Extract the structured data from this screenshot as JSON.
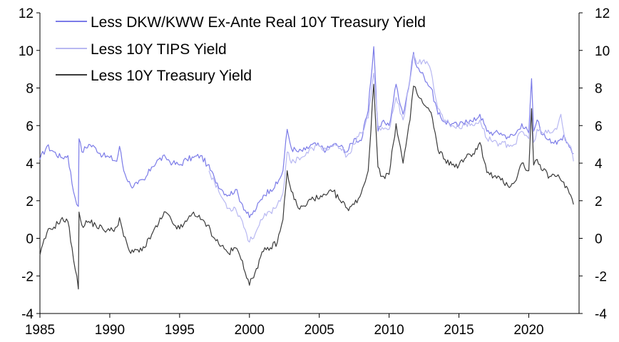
{
  "chart_data": {
    "type": "line",
    "title": "",
    "xlabel": "",
    "ylabel": "",
    "xlim": [
      1985,
      2023.6
    ],
    "ylim": [
      -4,
      12
    ],
    "x_ticks": [
      "1985",
      "1990",
      "1995",
      "2000",
      "2005",
      "2010",
      "2015",
      "2020"
    ],
    "y_ticks_left": [
      "12",
      "10",
      "8",
      "6",
      "4",
      "2",
      "0",
      "-2",
      "-4"
    ],
    "y_ticks_right": [
      "12",
      "10",
      "8",
      "6",
      "4",
      "2",
      "0",
      "-2",
      "-4"
    ],
    "grid": false,
    "legend_position": "top-left",
    "series": [
      {
        "name": "Less DKW/KWW Ex-Ante Real 10Y Treasury Yield",
        "color": "#7b7be8",
        "points": [
          [
            1985.0,
            4.2
          ],
          [
            1985.5,
            4.9
          ],
          [
            1986.0,
            4.6
          ],
          [
            1986.5,
            4.3
          ],
          [
            1987.0,
            4.4
          ],
          [
            1987.4,
            2.5
          ],
          [
            1987.75,
            1.7
          ],
          [
            1987.8,
            5.3
          ],
          [
            1988.0,
            4.6
          ],
          [
            1988.5,
            5.0
          ],
          [
            1989.0,
            4.8
          ],
          [
            1989.5,
            4.4
          ],
          [
            1990.0,
            4.3
          ],
          [
            1990.5,
            4.1
          ],
          [
            1990.7,
            4.9
          ],
          [
            1991.0,
            3.6
          ],
          [
            1991.5,
            2.8
          ],
          [
            1992.0,
            2.9
          ],
          [
            1992.5,
            3.1
          ],
          [
            1993.0,
            3.8
          ],
          [
            1993.5,
            4.2
          ],
          [
            1994.0,
            4.3
          ],
          [
            1994.5,
            4.0
          ],
          [
            1995.0,
            3.9
          ],
          [
            1995.5,
            4.2
          ],
          [
            1996.0,
            4.3
          ],
          [
            1996.5,
            4.4
          ],
          [
            1997.0,
            3.9
          ],
          [
            1997.5,
            3.2
          ],
          [
            1998.0,
            2.6
          ],
          [
            1998.5,
            2.3
          ],
          [
            1999.0,
            2.6
          ],
          [
            1999.5,
            1.8
          ],
          [
            2000.0,
            1.1
          ],
          [
            2000.5,
            1.6
          ],
          [
            2001.0,
            2.3
          ],
          [
            2001.5,
            2.6
          ],
          [
            2002.0,
            2.9
          ],
          [
            2002.4,
            3.6
          ],
          [
            2002.7,
            5.8
          ],
          [
            2003.0,
            4.8
          ],
          [
            2003.5,
            4.6
          ],
          [
            2004.0,
            4.7
          ],
          [
            2004.5,
            5.0
          ],
          [
            2005.0,
            4.9
          ],
          [
            2005.5,
            4.7
          ],
          [
            2006.0,
            5.0
          ],
          [
            2006.5,
            4.9
          ],
          [
            2007.0,
            4.6
          ],
          [
            2007.5,
            5.3
          ],
          [
            2008.0,
            5.2
          ],
          [
            2008.5,
            6.8
          ],
          [
            2008.9,
            10.2
          ],
          [
            2009.2,
            5.7
          ],
          [
            2009.5,
            6.2
          ],
          [
            2010.0,
            6.0
          ],
          [
            2010.5,
            8.2
          ],
          [
            2011.0,
            6.6
          ],
          [
            2011.5,
            8.5
          ],
          [
            2011.75,
            9.9
          ],
          [
            2012.0,
            9.1
          ],
          [
            2012.5,
            8.6
          ],
          [
            2013.0,
            8.0
          ],
          [
            2013.5,
            6.6
          ],
          [
            2014.0,
            6.2
          ],
          [
            2014.5,
            6.1
          ],
          [
            2015.0,
            6.0
          ],
          [
            2015.5,
            6.3
          ],
          [
            2016.0,
            6.2
          ],
          [
            2016.5,
            6.6
          ],
          [
            2017.0,
            5.7
          ],
          [
            2017.5,
            5.6
          ],
          [
            2018.0,
            5.6
          ],
          [
            2018.5,
            5.4
          ],
          [
            2019.0,
            5.5
          ],
          [
            2019.5,
            6.1
          ],
          [
            2020.0,
            5.6
          ],
          [
            2020.2,
            8.5
          ],
          [
            2020.35,
            5.7
          ],
          [
            2020.6,
            6.3
          ],
          [
            2021.0,
            5.5
          ],
          [
            2021.5,
            5.3
          ],
          [
            2022.0,
            5.0
          ],
          [
            2022.5,
            5.5
          ],
          [
            2023.0,
            4.8
          ],
          [
            2023.2,
            4.5
          ]
        ]
      },
      {
        "name": "Less 10Y TIPS Yield",
        "color": "#b8b8f2",
        "points": [
          [
            1997.1,
            3.6
          ],
          [
            1997.5,
            3.0
          ],
          [
            1998.0,
            2.2
          ],
          [
            1998.5,
            1.6
          ],
          [
            1999.0,
            1.6
          ],
          [
            1999.5,
            0.9
          ],
          [
            2000.0,
            -0.2
          ],
          [
            2000.5,
            0.4
          ],
          [
            2001.0,
            1.1
          ],
          [
            2001.5,
            1.4
          ],
          [
            2002.0,
            1.8
          ],
          [
            2002.4,
            2.4
          ],
          [
            2002.7,
            4.6
          ],
          [
            2003.0,
            4.0
          ],
          [
            2003.5,
            4.3
          ],
          [
            2004.0,
            4.4
          ],
          [
            2004.5,
            4.8
          ],
          [
            2005.0,
            4.9
          ],
          [
            2005.5,
            4.7
          ],
          [
            2006.0,
            4.9
          ],
          [
            2006.5,
            4.8
          ],
          [
            2007.0,
            4.4
          ],
          [
            2007.5,
            5.0
          ],
          [
            2008.0,
            5.6
          ],
          [
            2008.5,
            6.4
          ],
          [
            2008.9,
            8.8
          ],
          [
            2009.2,
            6.0
          ],
          [
            2009.5,
            5.9
          ],
          [
            2010.0,
            5.8
          ],
          [
            2010.5,
            7.5
          ],
          [
            2011.0,
            6.3
          ],
          [
            2011.5,
            8.4
          ],
          [
            2011.75,
            9.8
          ],
          [
            2012.0,
            9.3
          ],
          [
            2012.5,
            9.5
          ],
          [
            2013.0,
            8.9
          ],
          [
            2013.5,
            6.9
          ],
          [
            2014.0,
            6.3
          ],
          [
            2014.5,
            6.0
          ],
          [
            2015.0,
            5.9
          ],
          [
            2015.5,
            6.1
          ],
          [
            2016.0,
            6.0
          ],
          [
            2016.5,
            6.3
          ],
          [
            2017.0,
            5.3
          ],
          [
            2017.5,
            5.2
          ],
          [
            2018.0,
            5.0
          ],
          [
            2018.5,
            5.0
          ],
          [
            2019.0,
            5.0
          ],
          [
            2019.5,
            5.7
          ],
          [
            2020.0,
            5.3
          ],
          [
            2020.2,
            6.9
          ],
          [
            2020.35,
            5.1
          ],
          [
            2020.6,
            5.8
          ],
          [
            2021.0,
            5.6
          ],
          [
            2021.5,
            5.6
          ],
          [
            2022.0,
            5.8
          ],
          [
            2022.3,
            6.6
          ],
          [
            2022.6,
            5.2
          ],
          [
            2023.0,
            4.9
          ],
          [
            2023.2,
            4.1
          ]
        ]
      },
      {
        "name": "Less 10Y Treasury Yield",
        "color": "#3a3a3a",
        "points": [
          [
            1985.0,
            -0.9
          ],
          [
            1985.5,
            0.3
          ],
          [
            1986.0,
            0.6
          ],
          [
            1986.5,
            1.0
          ],
          [
            1987.0,
            0.9
          ],
          [
            1987.3,
            -0.5
          ],
          [
            1987.75,
            -2.7
          ],
          [
            1987.8,
            1.4
          ],
          [
            1988.0,
            0.7
          ],
          [
            1988.5,
            0.9
          ],
          [
            1989.0,
            0.7
          ],
          [
            1989.5,
            0.5
          ],
          [
            1990.0,
            0.4
          ],
          [
            1990.5,
            0.6
          ],
          [
            1990.7,
            1.1
          ],
          [
            1991.0,
            0.1
          ],
          [
            1991.5,
            -0.8
          ],
          [
            1992.0,
            -0.6
          ],
          [
            1992.5,
            -0.5
          ],
          [
            1993.0,
            0.2
          ],
          [
            1993.5,
            0.8
          ],
          [
            1994.0,
            1.4
          ],
          [
            1994.5,
            0.8
          ],
          [
            1995.0,
            0.5
          ],
          [
            1995.5,
            0.9
          ],
          [
            1996.0,
            1.4
          ],
          [
            1996.5,
            1.0
          ],
          [
            1997.0,
            0.7
          ],
          [
            1997.5,
            0.0
          ],
          [
            1998.0,
            -0.4
          ],
          [
            1998.5,
            -0.8
          ],
          [
            1999.0,
            -0.5
          ],
          [
            1999.5,
            -1.2
          ],
          [
            2000.0,
            -2.5
          ],
          [
            2000.5,
            -1.6
          ],
          [
            2001.0,
            -0.7
          ],
          [
            2001.5,
            -0.5
          ],
          [
            2002.0,
            -0.2
          ],
          [
            2002.4,
            1.0
          ],
          [
            2002.7,
            3.6
          ],
          [
            2003.0,
            2.5
          ],
          [
            2003.5,
            1.6
          ],
          [
            2004.0,
            1.7
          ],
          [
            2004.5,
            2.2
          ],
          [
            2005.0,
            2.1
          ],
          [
            2005.5,
            2.3
          ],
          [
            2006.0,
            2.5
          ],
          [
            2006.5,
            2.0
          ],
          [
            2007.0,
            1.6
          ],
          [
            2007.5,
            1.8
          ],
          [
            2008.0,
            2.4
          ],
          [
            2008.5,
            3.6
          ],
          [
            2008.9,
            8.2
          ],
          [
            2009.2,
            3.8
          ],
          [
            2009.5,
            3.3
          ],
          [
            2010.0,
            3.4
          ],
          [
            2010.5,
            6.1
          ],
          [
            2011.0,
            4.0
          ],
          [
            2011.5,
            6.3
          ],
          [
            2011.75,
            8.1
          ],
          [
            2012.0,
            7.7
          ],
          [
            2012.5,
            7.1
          ],
          [
            2013.0,
            6.7
          ],
          [
            2013.5,
            4.7
          ],
          [
            2014.0,
            4.2
          ],
          [
            2014.5,
            3.9
          ],
          [
            2015.0,
            3.9
          ],
          [
            2015.5,
            4.3
          ],
          [
            2016.0,
            4.5
          ],
          [
            2016.5,
            5.1
          ],
          [
            2017.0,
            3.5
          ],
          [
            2017.5,
            3.3
          ],
          [
            2018.0,
            3.1
          ],
          [
            2018.5,
            2.8
          ],
          [
            2019.0,
            3.0
          ],
          [
            2019.5,
            4.0
          ],
          [
            2020.0,
            3.6
          ],
          [
            2020.2,
            6.9
          ],
          [
            2020.35,
            3.9
          ],
          [
            2020.6,
            4.2
          ],
          [
            2021.0,
            3.6
          ],
          [
            2021.5,
            3.3
          ],
          [
            2022.0,
            3.3
          ],
          [
            2022.5,
            3.0
          ],
          [
            2023.0,
            2.3
          ],
          [
            2023.2,
            1.8
          ]
        ]
      }
    ]
  }
}
